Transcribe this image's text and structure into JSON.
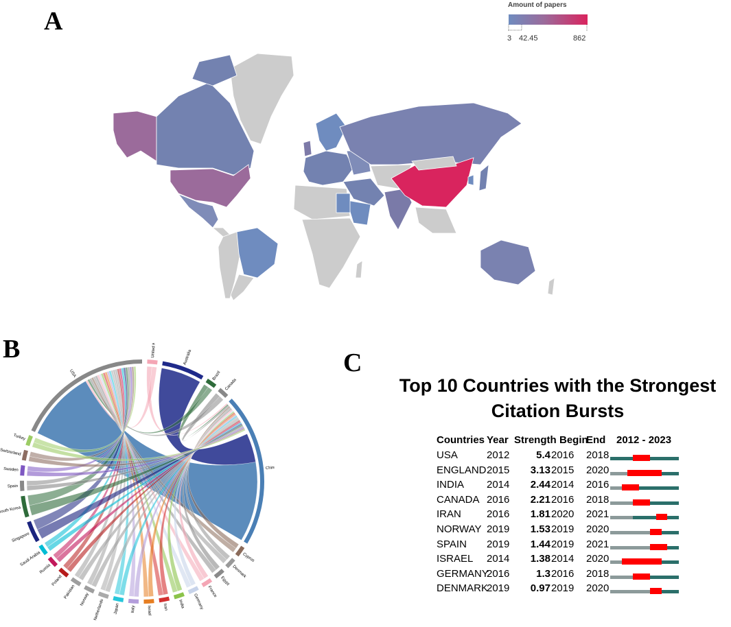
{
  "panel_labels": {
    "a": "A",
    "b": "B",
    "c": "C"
  },
  "chart_data": [
    {
      "type": "choropleth",
      "panel": "A",
      "legend_title": "Amount of papers",
      "scale_min": 3,
      "scale_mid": 42.45,
      "scale_max": 862,
      "scale_labels": [
        "3",
        "42.45",
        "862"
      ],
      "colors": {
        "low": "#6f8cbf",
        "mid": "#9b6b9b",
        "high": "#d9245e",
        "no_data": "#cccccc"
      },
      "regions": [
        {
          "name": "China",
          "level": "high"
        },
        {
          "name": "USA",
          "level": "mid"
        },
        {
          "name": "Alaska (USA)",
          "level": "mid"
        },
        {
          "name": "Canada",
          "level": "low"
        },
        {
          "name": "Brazil",
          "level": "low"
        },
        {
          "name": "Russia",
          "level": "low"
        },
        {
          "name": "Australia",
          "level": "low"
        },
        {
          "name": "India",
          "level": "low"
        },
        {
          "name": "Europe",
          "level": "low"
        },
        {
          "name": "Greenland",
          "level": "none"
        },
        {
          "name": "Africa",
          "level": "none"
        }
      ]
    },
    {
      "type": "chord",
      "panel": "B",
      "nodes": [
        {
          "name": "USA",
          "color": "#888888"
        },
        {
          "name": "United Kingdom",
          "color": "#f4a6b5"
        },
        {
          "name": "Australia",
          "color": "#1f2a8a"
        },
        {
          "name": "Brazil",
          "color": "#2e6b3a"
        },
        {
          "name": "Canada",
          "color": "#888888"
        },
        {
          "name": "China",
          "color": "#4a7fb5"
        },
        {
          "name": "Cyprus",
          "color": "#8b6b5a"
        },
        {
          "name": "Denmark",
          "color": "#999999"
        },
        {
          "name": "Egypt",
          "color": "#8a8a8a"
        },
        {
          "name": "France",
          "color": "#f4a6b5"
        },
        {
          "name": "Germany",
          "color": "#c7d3ea"
        },
        {
          "name": "India",
          "color": "#8bc34a"
        },
        {
          "name": "Iran",
          "color": "#d32f2f"
        },
        {
          "name": "Israel",
          "color": "#e67e22"
        },
        {
          "name": "Italy",
          "color": "#b39ddb"
        },
        {
          "name": "Japan",
          "color": "#26c6da"
        },
        {
          "name": "Netherlands",
          "color": "#aaaaaa"
        },
        {
          "name": "Norway",
          "color": "#9e9e9e"
        },
        {
          "name": "Pakistan",
          "color": "#9e9e9e"
        },
        {
          "name": "Poland",
          "color": "#b71c1c"
        },
        {
          "name": "Russia",
          "color": "#c2185b"
        },
        {
          "name": "Saudi Arabia",
          "color": "#00bcd4"
        },
        {
          "name": "Singapore",
          "color": "#1a237e"
        },
        {
          "name": "South Korea",
          "color": "#2e6b3a"
        },
        {
          "name": "Spain",
          "color": "#888888"
        },
        {
          "name": "Sweden",
          "color": "#7e57c2"
        },
        {
          "name": "Switzerland",
          "color": "#8d6e63"
        },
        {
          "name": "Turkey",
          "color": "#9ccc65"
        }
      ]
    },
    {
      "type": "table",
      "panel": "C",
      "title_lines": [
        "Top 10 Countries with the Strongest",
        "Citation Bursts"
      ],
      "headers": {
        "country": "Countries",
        "year": "Year",
        "strength": "Strength",
        "begin": "Begin",
        "end": "End",
        "range": "2012 - 2023"
      },
      "range_start": 2012,
      "range_end": 2023,
      "colors": {
        "before": "#8c9a9a",
        "active": "#2b6f6a",
        "burst": "#ff0000"
      },
      "rows": [
        {
          "country": "USA",
          "year": "2012",
          "strength": "5.4",
          "begin": "2016",
          "end": "2018"
        },
        {
          "country": "ENGLAND",
          "year": "2015",
          "strength": "3.13",
          "begin": "2015",
          "end": "2020"
        },
        {
          "country": "INDIA",
          "year": "2014",
          "strength": "2.44",
          "begin": "2014",
          "end": "2016"
        },
        {
          "country": "CANADA",
          "year": "2016",
          "strength": "2.21",
          "begin": "2016",
          "end": "2018"
        },
        {
          "country": "IRAN",
          "year": "2016",
          "strength": "1.81",
          "begin": "2020",
          "end": "2021"
        },
        {
          "country": "NORWAY",
          "year": "2019",
          "strength": "1.53",
          "begin": "2019",
          "end": "2020"
        },
        {
          "country": "SPAIN",
          "year": "2019",
          "strength": "1.44",
          "begin": "2019",
          "end": "2021"
        },
        {
          "country": "ISRAEL",
          "year": "2014",
          "strength": "1.38",
          "begin": "2014",
          "end": "2020"
        },
        {
          "country": "GERMANY",
          "year": "2016",
          "strength": "1.3",
          "begin": "2016",
          "end": "2018"
        },
        {
          "country": "DENMARK",
          "year": "2019",
          "strength": "0.97",
          "begin": "2019",
          "end": "2020"
        }
      ]
    }
  ]
}
